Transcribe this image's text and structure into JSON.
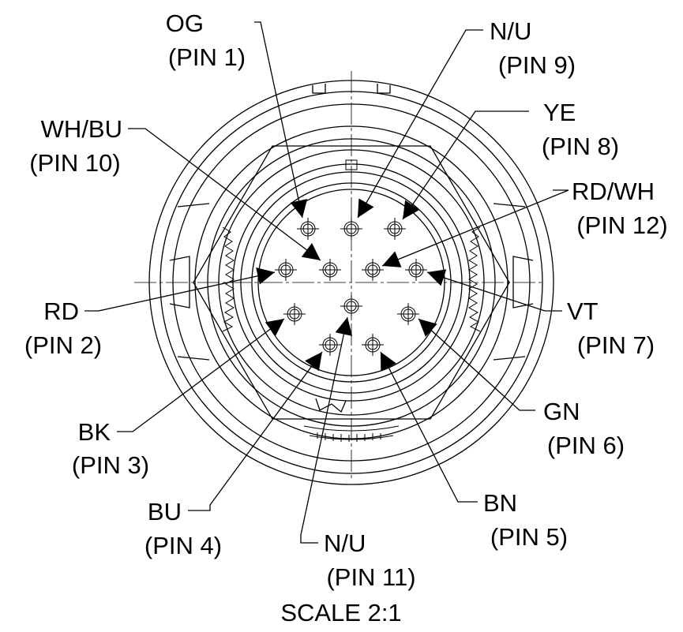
{
  "scale_label": "SCALE 2:1",
  "pins": [
    {
      "id": "pin1",
      "color": "OG",
      "pin": "(PIN 1)"
    },
    {
      "id": "pin2",
      "color": "RD",
      "pin": "(PIN 2)"
    },
    {
      "id": "pin3",
      "color": "BK",
      "pin": "(PIN 3)"
    },
    {
      "id": "pin4",
      "color": "BU",
      "pin": "(PIN 4)"
    },
    {
      "id": "pin5",
      "color": "BN",
      "pin": "(PIN 5)"
    },
    {
      "id": "pin6",
      "color": "GN",
      "pin": "(PIN 6)"
    },
    {
      "id": "pin7",
      "color": "VT",
      "pin": "(PIN 7)"
    },
    {
      "id": "pin8",
      "color": "YE",
      "pin": "(PIN 8)"
    },
    {
      "id": "pin9",
      "color": "N/U",
      "pin": "(PIN 9)"
    },
    {
      "id": "pin10",
      "color": "WH/BU",
      "pin": "(PIN 10)"
    },
    {
      "id": "pin11",
      "color": "N/U",
      "pin": "(PIN 11)"
    },
    {
      "id": "pin12",
      "color": "RD/WH",
      "pin": "(PIN 12)"
    }
  ]
}
